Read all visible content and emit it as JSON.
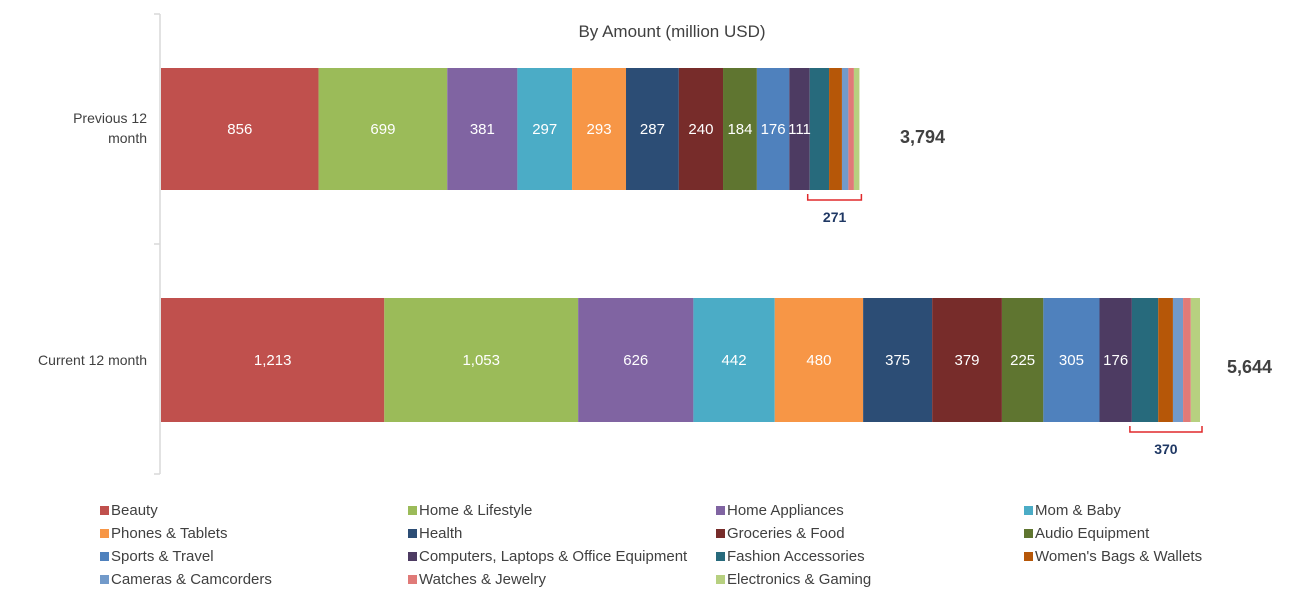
{
  "chart_data": {
    "type": "bar",
    "orientation": "horizontal-stacked",
    "title": "By Amount (million USD)",
    "categories": [
      "Previous 12 month",
      "Current 12 month"
    ],
    "series": [
      {
        "name": "Beauty",
        "color": "#C0504D",
        "values": [
          856,
          1213
        ],
        "labels": [
          "856",
          "1,213"
        ]
      },
      {
        "name": "Home & Lifestyle",
        "color": "#9BBB59",
        "values": [
          699,
          1053
        ],
        "labels": [
          "699",
          "1,053"
        ]
      },
      {
        "name": "Home Appliances",
        "color": "#8064A2",
        "values": [
          381,
          626
        ],
        "labels": [
          "381",
          "626"
        ]
      },
      {
        "name": "Mom & Baby",
        "color": "#4BACC6",
        "values": [
          297,
          442
        ],
        "labels": [
          "297",
          "442"
        ]
      },
      {
        "name": "Phones & Tablets",
        "color": "#F79646",
        "values": [
          293,
          480
        ],
        "labels": [
          "293",
          "480"
        ]
      },
      {
        "name": "Health",
        "color": "#2C4D75",
        "values": [
          287,
          375
        ],
        "labels": [
          "287",
          "375"
        ]
      },
      {
        "name": "Groceries & Food",
        "color": "#772C2A",
        "values": [
          240,
          379
        ],
        "labels": [
          "240",
          "379"
        ]
      },
      {
        "name": "Audio Equipment",
        "color": "#5F7530",
        "values": [
          184,
          225
        ],
        "labels": [
          "184",
          "225"
        ]
      },
      {
        "name": "Sports & Travel",
        "color": "#4F81BD",
        "values": [
          176,
          305
        ],
        "labels": [
          "176",
          "305"
        ]
      },
      {
        "name": "Computers, Laptops & Office Equipment",
        "color": "#4D3B62",
        "values": [
          111,
          176
        ],
        "labels": [
          "111",
          "176"
        ]
      },
      {
        "name": "Fashion Accessories",
        "color": "#276A7C",
        "values": [
          105,
          143
        ]
      },
      {
        "name": "Women's Bags & Wallets",
        "color": "#B65708",
        "values": [
          70,
          80
        ]
      },
      {
        "name": "Cameras & Camcorders",
        "color": "#729ACA",
        "values": [
          35,
          55
        ]
      },
      {
        "name": "Watches & Jewelry",
        "color": "#E07A78",
        "values": [
          30,
          42
        ]
      },
      {
        "name": "Electronics & Gaming",
        "color": "#B7D080",
        "values": [
          30,
          50
        ]
      }
    ],
    "totals": [
      "3,794",
      "5,644"
    ],
    "bracket_labels": [
      "271",
      "370"
    ],
    "xlim": [
      0,
      5644
    ],
    "legend": "bottom",
    "grid": false
  }
}
